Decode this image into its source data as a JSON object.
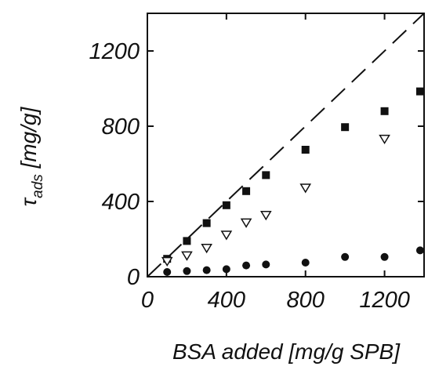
{
  "chart_data": {
    "type": "scatter",
    "xlabel": "BSA added [mg/g SPB]",
    "ylabel": {
      "symbol": "τ",
      "subscript": "ads",
      "unit": " [mg/g]"
    },
    "xlim": [
      0,
      1400
    ],
    "ylim": [
      0,
      1400
    ],
    "xticks": [
      0,
      400,
      800,
      1200
    ],
    "yticks": [
      0,
      400,
      800,
      1200
    ],
    "xtick_labels": [
      "0",
      "400",
      "800",
      "1200"
    ],
    "ytick_labels": [
      "0",
      "400",
      "800",
      "1200"
    ],
    "grid": false,
    "legend": "none",
    "reference_line": {
      "style": "dashed",
      "x": [
        0,
        1400
      ],
      "y": [
        0,
        1400
      ]
    },
    "series": [
      {
        "marker": "square",
        "color": "#111111",
        "points": [
          [
            100,
            95
          ],
          [
            200,
            190
          ],
          [
            300,
            285
          ],
          [
            400,
            380
          ],
          [
            500,
            455
          ],
          [
            600,
            540
          ],
          [
            800,
            675
          ],
          [
            1000,
            795
          ],
          [
            1200,
            880
          ],
          [
            1380,
            985
          ]
        ]
      },
      {
        "marker": "triangle-down-open",
        "color": "#111111",
        "points": [
          [
            100,
            85
          ],
          [
            200,
            115
          ],
          [
            300,
            155
          ],
          [
            400,
            225
          ],
          [
            500,
            290
          ],
          [
            600,
            330
          ],
          [
            800,
            475
          ],
          [
            1200,
            735
          ]
        ]
      },
      {
        "marker": "circle",
        "color": "#111111",
        "points": [
          [
            100,
            25
          ],
          [
            200,
            30
          ],
          [
            300,
            35
          ],
          [
            400,
            40
          ],
          [
            500,
            60
          ],
          [
            600,
            65
          ],
          [
            800,
            75
          ],
          [
            1000,
            105
          ],
          [
            1200,
            105
          ],
          [
            1380,
            140
          ]
        ]
      }
    ]
  }
}
